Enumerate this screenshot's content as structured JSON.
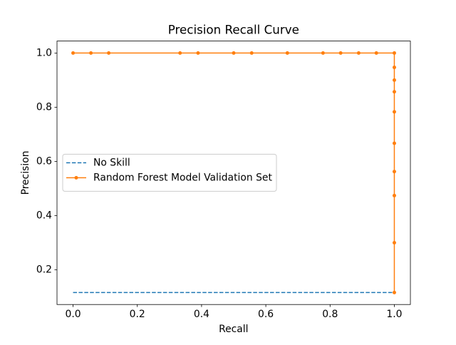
{
  "chart_data": {
    "type": "line",
    "title": "Precision Recall Curve",
    "x_label": "Recall",
    "y_label": "Precision",
    "series": [
      {
        "name": "No Skill",
        "color": "#1f77b4",
        "linestyle": "dashed",
        "marker": false,
        "x": [
          0,
          1
        ],
        "values": [
          0.116,
          0.116
        ]
      },
      {
        "name": "Random Forest Model Validation Set",
        "color": "#ff7f0e",
        "linestyle": "solid",
        "marker": true,
        "x": [
          0,
          0.0556,
          0.111,
          0.333,
          0.389,
          0.5,
          0.556,
          0.667,
          0.778,
          0.833,
          0.889,
          0.944,
          1,
          1,
          1,
          1,
          1,
          1,
          1,
          1,
          1,
          1
        ],
        "values": [
          1,
          1,
          1,
          1,
          1,
          1,
          1,
          1,
          1,
          1,
          1,
          1,
          1,
          0.947,
          0.9,
          0.857,
          0.783,
          0.667,
          0.5625,
          0.474,
          0.3,
          0.116
        ]
      }
    ],
    "xlim": [
      -0.05,
      1.05
    ],
    "xticks": [
      {
        "value": 0,
        "label": "0.0"
      },
      0.2,
      0.4,
      0.6,
      0.8,
      {
        "value": 1,
        "label": "1.0"
      }
    ],
    "ylim": [
      0.0718,
      1.0442
    ],
    "yticks": [
      0.2,
      0.4,
      0.6,
      0.8,
      {
        "value": 1,
        "label": "1.0"
      }
    ],
    "grid": false,
    "legend": "center left"
  }
}
